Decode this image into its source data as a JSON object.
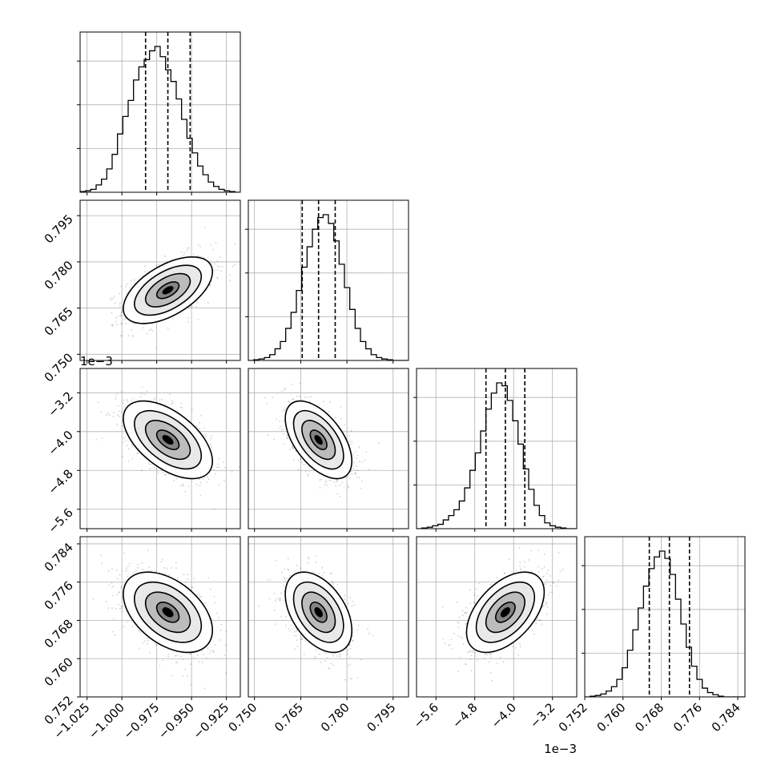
{
  "chart_data": {
    "type": "corner",
    "title": "",
    "grid": true,
    "parameters": [
      {
        "index": 0,
        "range": [
          -1.03,
          -0.915
        ],
        "ticks": [
          -1.025,
          -1.0,
          -0.975,
          -0.95,
          -0.925
        ],
        "tick_labels": [
          "−1.025",
          "−1.000",
          "−0.975",
          "−0.950",
          "−0.925"
        ],
        "quantiles": [
          -0.983,
          -0.967,
          -0.951
        ],
        "mean": -0.967,
        "sd": 0.016
      },
      {
        "index": 1,
        "range": [
          0.748,
          0.8
        ],
        "ticks": [
          0.75,
          0.765,
          0.78,
          0.795
        ],
        "tick_labels": [
          "0.750",
          "0.765",
          "0.780",
          "0.795"
        ],
        "quantiles": [
          0.7655,
          0.7708,
          0.7762
        ],
        "mean": 0.7708,
        "sd": 0.0054
      },
      {
        "index": 2,
        "range": [
          -6.0,
          -2.7
        ],
        "ticks": [
          -5.6,
          -4.8,
          -4.0,
          -3.2
        ],
        "tick_labels": [
          "−5.6",
          "−4.8",
          "−4.0",
          "−3.2"
        ],
        "quantiles": [
          -4.57,
          -4.17,
          -3.77
        ],
        "mean": -4.17,
        "sd": 0.4,
        "scale_label": "1e−3"
      },
      {
        "index": 3,
        "range": [
          0.752,
          0.7855
        ],
        "ticks": [
          0.752,
          0.76,
          0.768,
          0.776,
          0.784
        ],
        "tick_labels": [
          "0.752",
          "0.760",
          "0.768",
          "0.776",
          "0.784"
        ],
        "quantiles": [
          0.7655,
          0.7697,
          0.7739
        ],
        "mean": 0.7697,
        "sd": 0.0042
      }
    ],
    "correlations": {
      "1,0": 0.55,
      "2,0": -0.55,
      "2,1": -0.55,
      "3,0": -0.45,
      "3,1": -0.45,
      "3,2": 0.5
    },
    "histograms": [
      [
        0.005,
        0.01,
        0.02,
        0.05,
        0.09,
        0.16,
        0.26,
        0.4,
        0.52,
        0.63,
        0.77,
        0.86,
        0.91,
        0.97,
        1.0,
        0.93,
        0.84,
        0.76,
        0.64,
        0.5,
        0.37,
        0.27,
        0.18,
        0.12,
        0.07,
        0.04,
        0.02,
        0.01,
        0.005,
        0.0
      ],
      [
        0.0,
        0.005,
        0.01,
        0.02,
        0.04,
        0.08,
        0.13,
        0.22,
        0.33,
        0.48,
        0.64,
        0.78,
        0.9,
        0.98,
        1.0,
        0.94,
        0.82,
        0.66,
        0.5,
        0.35,
        0.22,
        0.13,
        0.08,
        0.04,
        0.02,
        0.01,
        0.005,
        0.0,
        0.0,
        0.0
      ],
      [
        0.0,
        0.005,
        0.01,
        0.02,
        0.03,
        0.06,
        0.09,
        0.13,
        0.19,
        0.28,
        0.4,
        0.52,
        0.67,
        0.82,
        0.93,
        1.0,
        0.98,
        0.88,
        0.74,
        0.58,
        0.41,
        0.27,
        0.16,
        0.09,
        0.04,
        0.02,
        0.01,
        0.005,
        0.0,
        0.0
      ],
      [
        0.0,
        0.005,
        0.01,
        0.02,
        0.04,
        0.07,
        0.12,
        0.2,
        0.32,
        0.46,
        0.61,
        0.76,
        0.88,
        0.96,
        1.0,
        0.95,
        0.84,
        0.67,
        0.5,
        0.34,
        0.21,
        0.12,
        0.06,
        0.03,
        0.015,
        0.005,
        0.0,
        0.0,
        0.0,
        0.0
      ]
    ],
    "contour_levels_sigma": [
      0.5,
      1.0,
      1.5,
      2.0
    ]
  }
}
